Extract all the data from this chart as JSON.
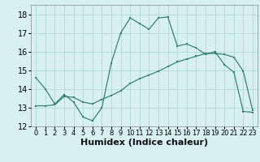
{
  "line1_x": [
    0,
    1,
    2,
    3,
    4,
    5,
    6,
    7,
    8,
    9,
    10,
    11,
    12,
    13,
    14,
    15,
    16,
    17,
    18,
    19,
    20,
    21,
    22,
    23
  ],
  "line1_y": [
    14.6,
    14.0,
    13.2,
    13.7,
    13.3,
    12.5,
    12.3,
    13.0,
    15.4,
    17.0,
    17.8,
    17.5,
    17.2,
    17.8,
    17.85,
    16.3,
    16.4,
    16.2,
    15.85,
    16.0,
    15.3,
    14.9,
    12.8,
    12.75
  ],
  "line2_x": [
    0,
    1,
    2,
    3,
    4,
    5,
    6,
    7,
    8,
    9,
    10,
    11,
    12,
    13,
    14,
    15,
    16,
    17,
    18,
    19,
    20,
    21,
    22,
    23
  ],
  "line2_y": [
    13.1,
    13.1,
    13.15,
    13.6,
    13.55,
    13.3,
    13.2,
    13.45,
    13.65,
    13.9,
    14.3,
    14.55,
    14.75,
    14.95,
    15.2,
    15.45,
    15.6,
    15.75,
    15.9,
    15.9,
    15.85,
    15.7,
    14.95,
    12.85
  ],
  "line_color": "#2e7d6e",
  "bg_color": "#d8f0f0",
  "grid_color": "#b0d8d8",
  "xlabel": "Humidex (Indice chaleur)",
  "ylim": [
    12,
    18.5
  ],
  "xlim": [
    -0.5,
    23.5
  ],
  "yticks": [
    12,
    13,
    14,
    15,
    16,
    17,
    18
  ],
  "xticks": [
    0,
    1,
    2,
    3,
    4,
    5,
    6,
    7,
    8,
    9,
    10,
    11,
    12,
    13,
    14,
    15,
    16,
    17,
    18,
    19,
    20,
    21,
    22,
    23
  ],
  "tick_fontsize": 6,
  "label_fontsize": 8
}
